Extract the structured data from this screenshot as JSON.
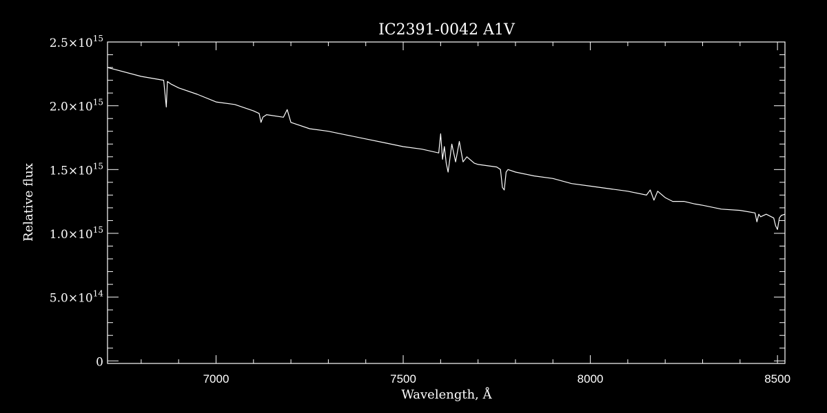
{
  "chart_data": {
    "type": "line",
    "title": "IC2391-0042  A1V",
    "xlabel": "Wavelength, Å",
    "ylabel": "Relative flux",
    "xlim": [
      6710,
      8520
    ],
    "ylim": [
      -20000000000000.0,
      2500000000000000.0
    ],
    "x_ticks": [
      7000,
      7500,
      8000,
      8500
    ],
    "x_tick_labels": [
      "7000",
      "7500",
      "8000",
      "8500"
    ],
    "y_ticks": [
      0,
      500000000000000.0,
      1000000000000000.0,
      1500000000000000.0,
      2000000000000000.0,
      2500000000000000.0
    ],
    "y_tick_labels": [
      {
        "mantissa": "0",
        "exponent": ""
      },
      {
        "mantissa": "5.0×10",
        "exponent": "14"
      },
      {
        "mantissa": "1.0×10",
        "exponent": "15"
      },
      {
        "mantissa": "1.5×10",
        "exponent": "15"
      },
      {
        "mantissa": "2.0×10",
        "exponent": "15"
      },
      {
        "mantissa": "2.5×10",
        "exponent": "15"
      }
    ],
    "grid": false,
    "colors": {
      "background": "#000000",
      "foreground": "#ffffff"
    },
    "series": [
      {
        "x": [
          6710,
          6800,
          6860,
          6867,
          6870,
          6880,
          6900,
          6950,
          7000,
          7050,
          7100,
          7115,
          7120,
          7125,
          7135,
          7180,
          7190,
          7200,
          7250,
          7300,
          7350,
          7400,
          7450,
          7500,
          7550,
          7595,
          7600,
          7605,
          7610,
          7615,
          7620,
          7630,
          7640,
          7650,
          7660,
          7670,
          7690,
          7700,
          7750,
          7760,
          7765,
          7770,
          7775,
          7780,
          7800,
          7850,
          7900,
          7950,
          8000,
          8050,
          8100,
          8150,
          8160,
          8170,
          8180,
          8200,
          8220,
          8250,
          8280,
          8300,
          8350,
          8400,
          8440,
          8445,
          8450,
          8455,
          8470,
          8490,
          8495,
          8500,
          8505,
          8510,
          8520
        ],
        "y": [
          2300000000000000.0,
          2230000000000000.0,
          2200000000000000.0,
          1990000000000000.0,
          2190000000000000.0,
          2170000000000000.0,
          2140000000000000.0,
          2090000000000000.0,
          2030000000000000.0,
          2010000000000000.0,
          1960000000000000.0,
          1940000000000000.0,
          1870000000000000.0,
          1910000000000000.0,
          1930000000000000.0,
          1910000000000000.0,
          1970000000000000.0,
          1870000000000000.0,
          1820000000000000.0,
          1800000000000000.0,
          1770000000000000.0,
          1740000000000000.0,
          1710000000000000.0,
          1680000000000000.0,
          1660000000000000.0,
          1630000000000000.0,
          1780000000000000.0,
          1580000000000000.0,
          1680000000000000.0,
          1550000000000000.0,
          1480000000000000.0,
          1700000000000000.0,
          1560000000000000.0,
          1720000000000000.0,
          1560000000000000.0,
          1600000000000000.0,
          1550000000000000.0,
          1540000000000000.0,
          1520000000000000.0,
          1500000000000000.0,
          1360000000000000.0,
          1340000000000000.0,
          1480000000000000.0,
          1500000000000000.0,
          1480000000000000.0,
          1450000000000000.0,
          1430000000000000.0,
          1390000000000000.0,
          1370000000000000.0,
          1350000000000000.0,
          1330000000000000.0,
          1300000000000000.0,
          1340000000000000.0,
          1260000000000000.0,
          1330000000000000.0,
          1280000000000000.0,
          1250000000000000.0,
          1250000000000000.0,
          1230000000000000.0,
          1220000000000000.0,
          1190000000000000.0,
          1180000000000000.0,
          1160000000000000.0,
          1090000000000000.0,
          1150000000000000.0,
          1130000000000000.0,
          1150000000000000.0,
          1120000000000000.0,
          1060000000000000.0,
          1030000000000000.0,
          1120000000000000.0,
          1140000000000000.0,
          1150000000000000.0
        ]
      }
    ]
  }
}
